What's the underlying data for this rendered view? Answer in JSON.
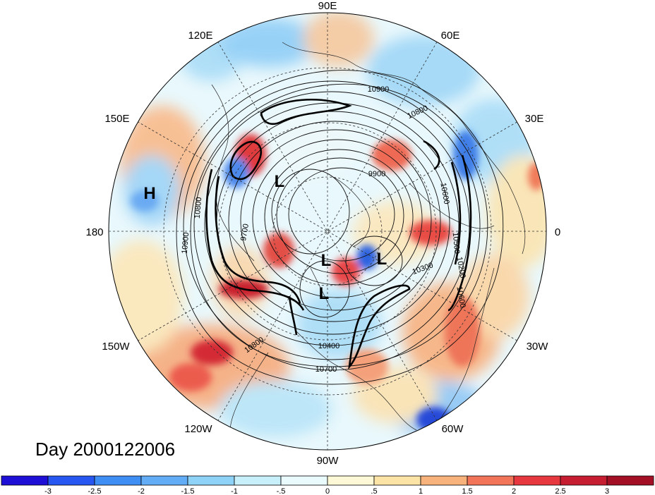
{
  "map": {
    "projection": "north-polar-stereographic",
    "longitude_labels": [
      "90E",
      "60E",
      "30E",
      "0",
      "30W",
      "60W",
      "90W",
      "120W",
      "150W",
      "180",
      "150E",
      "120E"
    ],
    "contour_labels": [
      "10900",
      "10800",
      "9900",
      "10600",
      "10500",
      "10300",
      "10200",
      "10400",
      "10700",
      "10800",
      "10900",
      "10800",
      "9700",
      "10600"
    ],
    "pressure_centers": [
      "H",
      "L",
      "L",
      "L",
      "L"
    ],
    "day_label": "Day 2000122006"
  },
  "colorbar": {
    "tick_labels": [
      "-3",
      "-2.5",
      "-2",
      "-1.5",
      "-1",
      "-.5",
      "0",
      ".5",
      "1",
      "1.5",
      "2",
      "2.5",
      "3"
    ],
    "colors": [
      "#1e0fd6",
      "#2757f0",
      "#3f8ef4",
      "#62adf6",
      "#8fd2f8",
      "#c7f0fb",
      "#eafbfd",
      "#fdf8d6",
      "#fce3a6",
      "#f8b37c",
      "#f27559",
      "#e6383e",
      "#c71d30",
      "#a30f24"
    ]
  }
}
